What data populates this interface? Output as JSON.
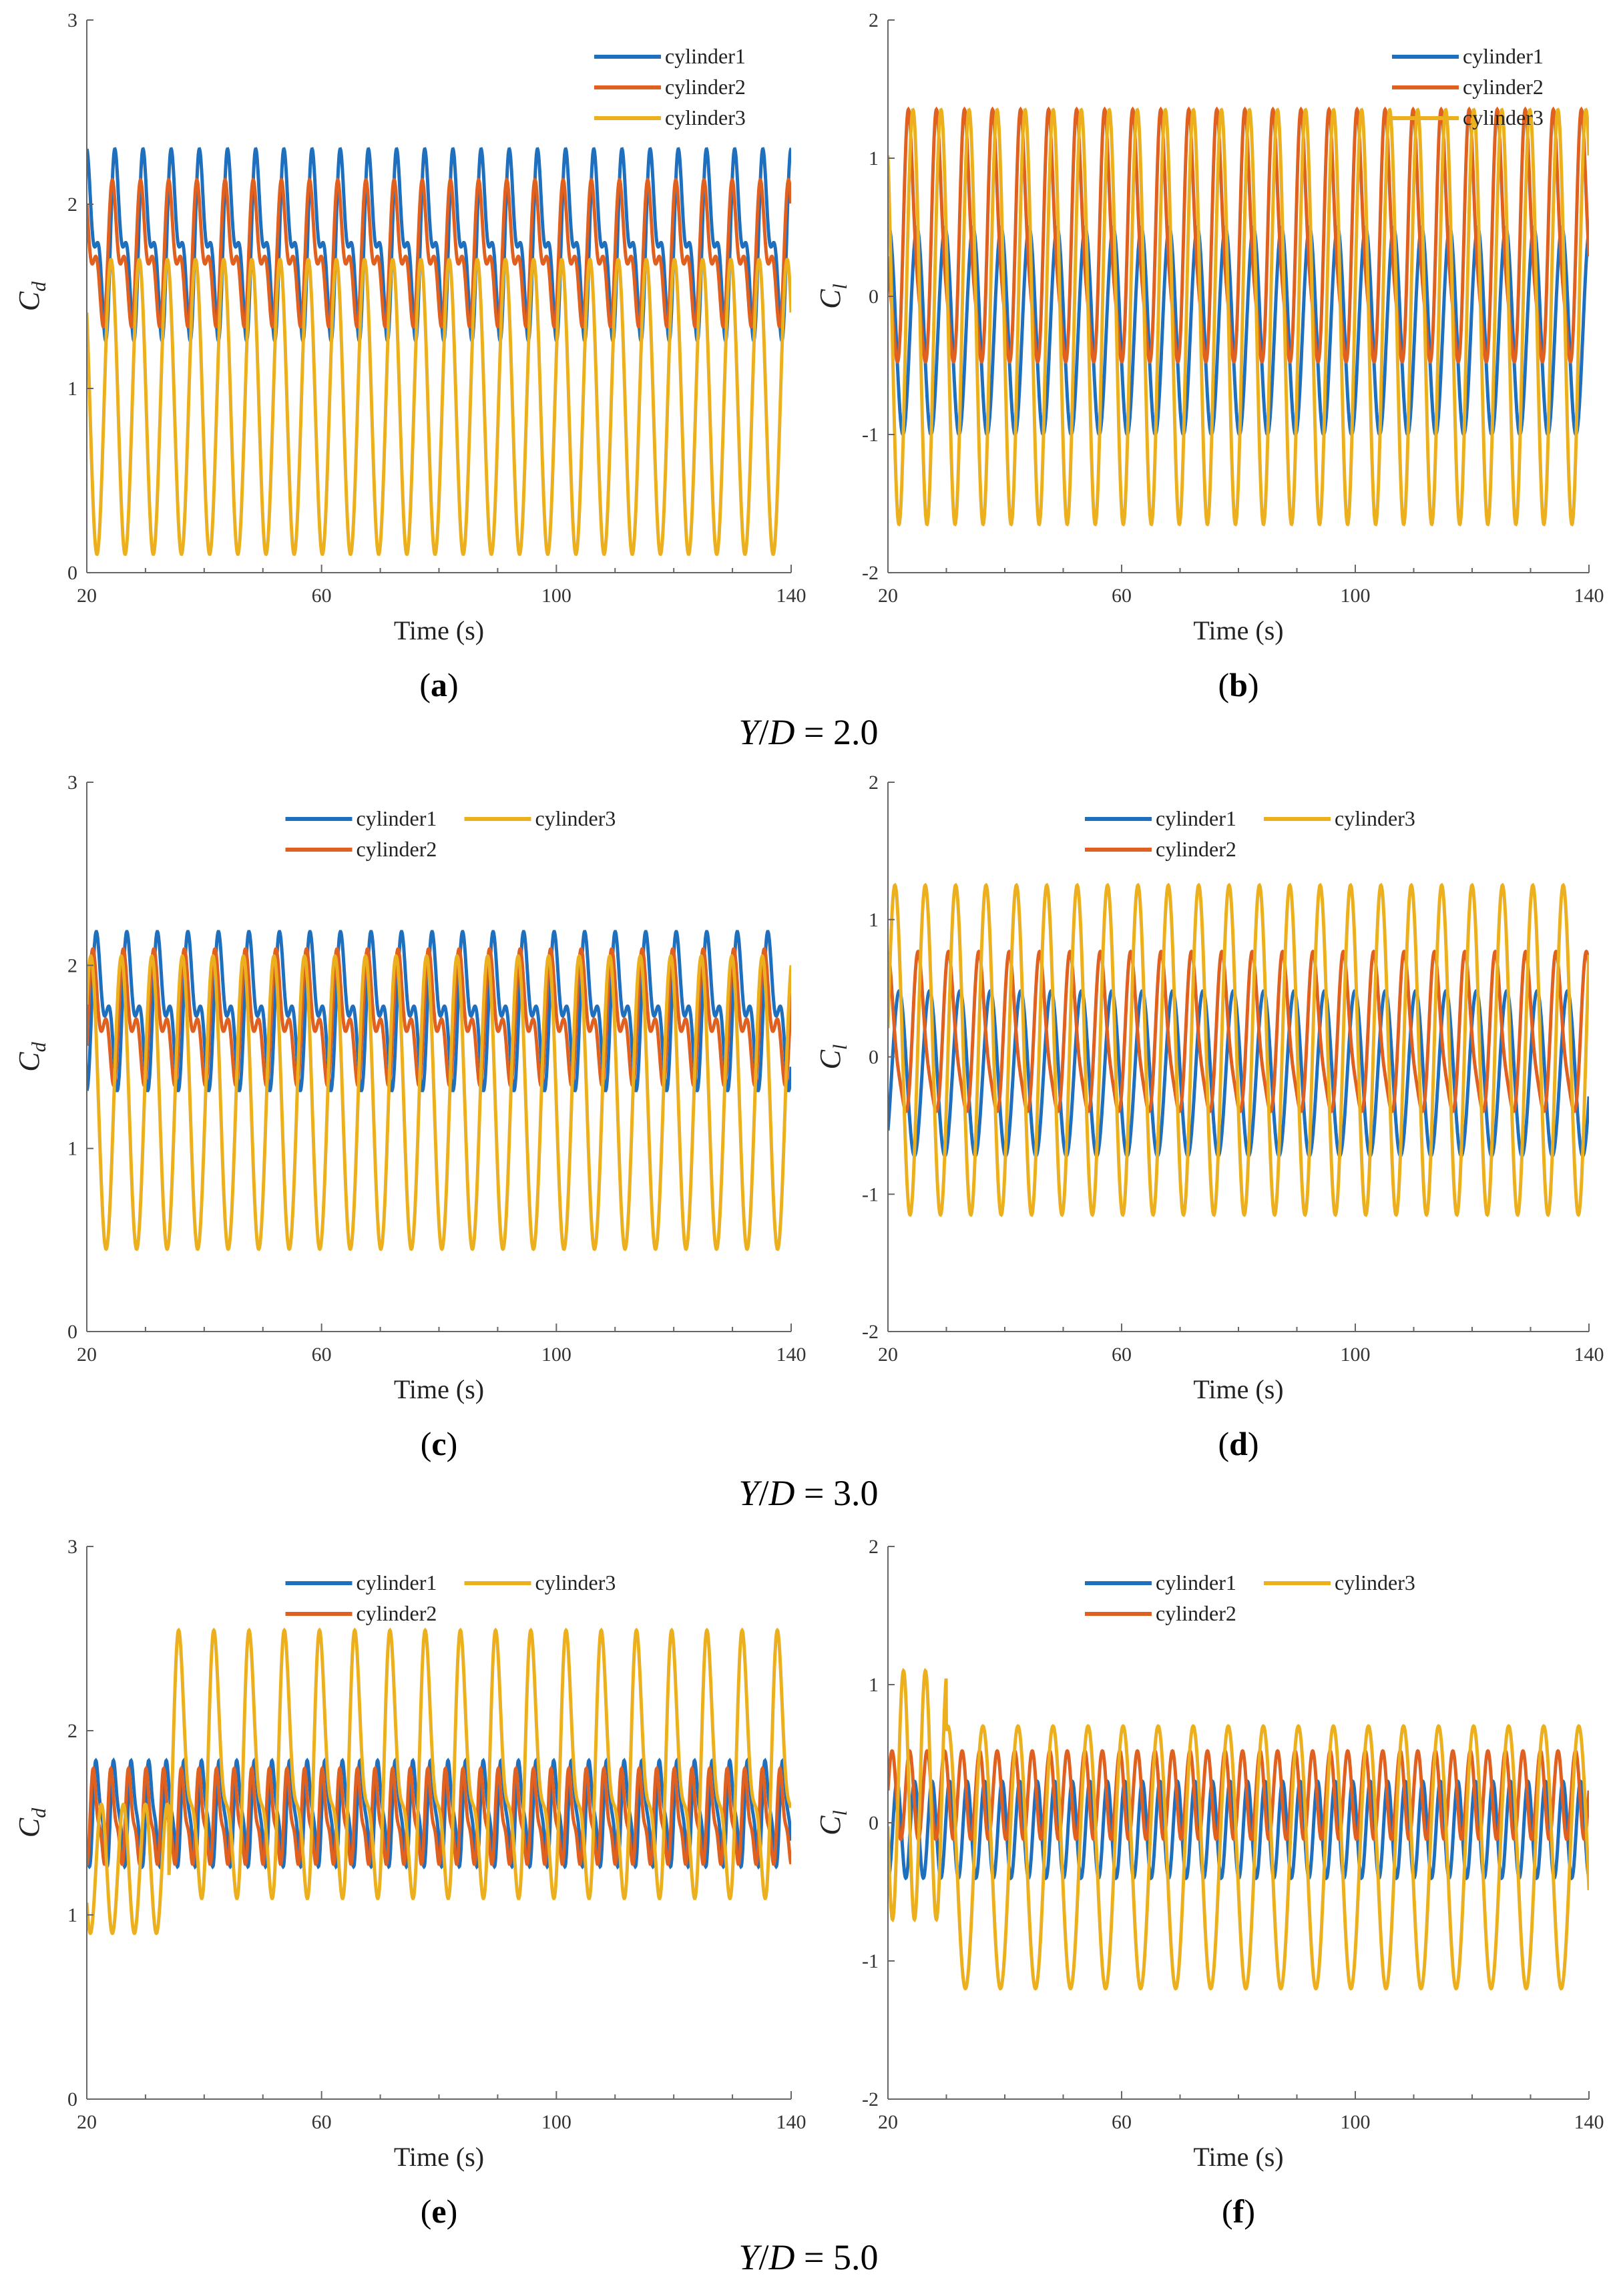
{
  "figure": {
    "series_colors": {
      "cylinder1": "#1f6fbf",
      "cylinder2": "#e0601f",
      "cylinder3": "#ecb01f"
    },
    "rows": [
      {
        "caption": {
          "var1": "Y",
          "var2": "D",
          "sep": "/",
          "eq": " = 2.0"
        }
      },
      {
        "caption": {
          "var1": "Y",
          "var2": "D",
          "sep": "/",
          "eq": " = 3.0"
        }
      },
      {
        "caption": {
          "var1": "Y",
          "var2": "D",
          "sep": "/",
          "eq": " = 5.0"
        }
      }
    ]
  },
  "chart_data": [
    {
      "id": "a",
      "panel_label": "a",
      "type": "line",
      "title": "",
      "xlabel": "Time (s)",
      "ylabel_main": "C",
      "ylabel_sub": "d",
      "xlim": [
        20,
        140
      ],
      "ylim": [
        0,
        3
      ],
      "xticks": [
        20,
        60,
        100,
        140
      ],
      "yticks": [
        0,
        1,
        2,
        3
      ],
      "grid": false,
      "legend_placement": "top-right",
      "legend_layout": "vertical",
      "series": [
        {
          "name": "cylinder1",
          "period": 4.8,
          "mean": 1.78,
          "amp": 0.38,
          "h2": 0.22,
          "phase": 0.0
        },
        {
          "name": "cylinder2",
          "period": 4.8,
          "mean": 1.72,
          "amp": 0.28,
          "h2": 0.18,
          "phase": 0.6
        },
        {
          "name": "cylinder3",
          "period": 4.8,
          "mean": 0.9,
          "amp": 0.8,
          "h2": 0.0,
          "phase": 1.4
        }
      ]
    },
    {
      "id": "b",
      "panel_label": "b",
      "type": "line",
      "title": "",
      "xlabel": "Time (s)",
      "ylabel_main": "C",
      "ylabel_sub": "l",
      "xlim": [
        20,
        140
      ],
      "ylim": [
        -2,
        2
      ],
      "xticks": [
        20,
        60,
        100,
        140
      ],
      "yticks": [
        -2,
        -1,
        0,
        1,
        2
      ],
      "grid": false,
      "legend_placement": "top-right",
      "legend_layout": "vertical",
      "series": [
        {
          "name": "cylinder1",
          "period": 4.8,
          "mean": -0.25,
          "amp": 0.75,
          "h2": 0.0,
          "phase": 0.3
        },
        {
          "name": "cylinder2",
          "period": 4.8,
          "mean": 0.35,
          "amp": 0.85,
          "h2": 0.2,
          "phase": 2.0
        },
        {
          "name": "cylinder3",
          "period": 4.8,
          "mean": -0.15,
          "amp": 1.5,
          "h2": 0.0,
          "phase": 1.2
        }
      ]
    },
    {
      "id": "c",
      "panel_label": "c",
      "type": "line",
      "title": "",
      "xlabel": "Time (s)",
      "ylabel_main": "C",
      "ylabel_sub": "d",
      "xlim": [
        20,
        140
      ],
      "ylim": [
        0,
        3
      ],
      "xticks": [
        20,
        60,
        100,
        140
      ],
      "yticks": [
        0,
        1,
        2,
        3
      ],
      "grid": false,
      "legend_placement": "top-center",
      "legend_layout": "two-column",
      "series": [
        {
          "name": "cylinder1",
          "period": 5.2,
          "mean": 1.75,
          "amp": 0.3,
          "h2": 0.2,
          "phase": 0.0
        },
        {
          "name": "cylinder2",
          "period": 5.2,
          "mean": 1.7,
          "amp": 0.25,
          "h2": 0.18,
          "phase": 0.8
        },
        {
          "name": "cylinder3",
          "period": 5.2,
          "mean": 1.25,
          "amp": 0.8,
          "h2": 0.0,
          "phase": 1.7
        }
      ]
    },
    {
      "id": "d",
      "panel_label": "d",
      "type": "line",
      "title": "",
      "xlabel": "Time (s)",
      "ylabel_main": "C",
      "ylabel_sub": "l",
      "xlim": [
        20,
        140
      ],
      "ylim": [
        -2,
        2
      ],
      "xticks": [
        20,
        60,
        100,
        140
      ],
      "yticks": [
        -2,
        -1,
        0,
        1,
        2
      ],
      "grid": false,
      "legend_placement": "top-center",
      "legend_layout": "two-column",
      "series": [
        {
          "name": "cylinder1",
          "period": 5.2,
          "mean": -0.12,
          "amp": 0.6,
          "h2": 0.0,
          "phase": 0.2
        },
        {
          "name": "cylinder2",
          "period": 5.2,
          "mean": 0.12,
          "amp": 0.55,
          "h2": 0.12,
          "phase": 2.4
        },
        {
          "name": "cylinder3",
          "period": 5.2,
          "mean": 0.05,
          "amp": 1.2,
          "h2": 0.0,
          "phase": 1.1
        }
      ]
    },
    {
      "id": "e",
      "panel_label": "e",
      "type": "line",
      "title": "",
      "xlabel": "Time (s)",
      "ylabel_main": "C",
      "ylabel_sub": "d",
      "xlim": [
        20,
        140
      ],
      "ylim": [
        0,
        3
      ],
      "xticks": [
        20,
        60,
        100,
        140
      ],
      "yticks": [
        0,
        1,
        2,
        3
      ],
      "grid": false,
      "legend_placement": "top-center",
      "legend_layout": "two-column",
      "series": [
        {
          "name": "cylinder1",
          "period": 3.0,
          "mean": 1.55,
          "amp": 0.25,
          "h2": 0.08,
          "phase": 0.0
        },
        {
          "name": "cylinder2",
          "period": 3.0,
          "mean": 1.52,
          "amp": 0.22,
          "h2": 0.08,
          "phase": 1.0
        },
        {
          "name": "cylinder3",
          "period": 6.0,
          "mean": 1.75,
          "amp": 0.6,
          "h2": 0.25,
          "phase": 1.6,
          "early_until": 34,
          "early_mean": 1.25,
          "early_amp": 0.35
        }
      ]
    },
    {
      "id": "f",
      "panel_label": "f",
      "type": "line",
      "title": "",
      "xlabel": "Time (s)",
      "ylabel_main": "C",
      "ylabel_sub": "l",
      "xlim": [
        20,
        140
      ],
      "ylim": [
        -2,
        2
      ],
      "xticks": [
        20,
        60,
        100,
        140
      ],
      "yticks": [
        -2,
        -1,
        0,
        1,
        2
      ],
      "grid": false,
      "legend_placement": "top-center",
      "legend_layout": "two-column",
      "series": [
        {
          "name": "cylinder1",
          "period": 3.0,
          "mean": -0.05,
          "amp": 0.35,
          "h2": 0.0,
          "phase": 0.4
        },
        {
          "name": "cylinder2",
          "period": 3.0,
          "mean": 0.2,
          "amp": 0.32,
          "h2": 0.0,
          "phase": 2.2
        },
        {
          "name": "cylinder3",
          "period": 6.0,
          "mean": -0.25,
          "amp": 0.95,
          "h2": 0.0,
          "phase": 1.3,
          "early_until": 30,
          "early_mean": 0.2,
          "early_amp": 0.9
        }
      ]
    }
  ]
}
